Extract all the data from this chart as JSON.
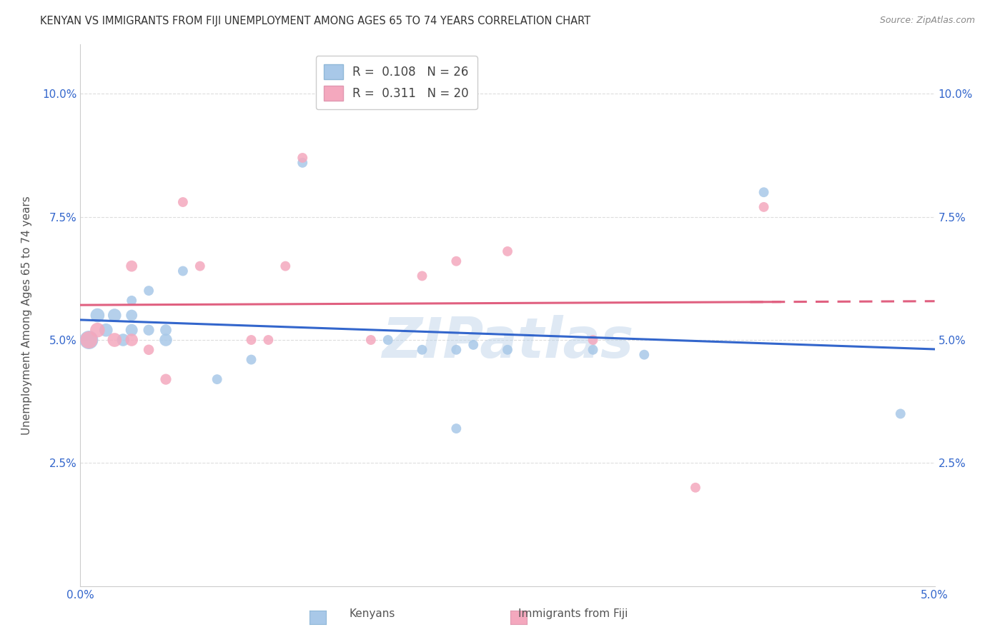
{
  "title": "KENYAN VS IMMIGRANTS FROM FIJI UNEMPLOYMENT AMONG AGES 65 TO 74 YEARS CORRELATION CHART",
  "source": "Source: ZipAtlas.com",
  "ylabel": "Unemployment Among Ages 65 to 74 years",
  "xlim": [
    0.0,
    0.05
  ],
  "ylim": [
    0.0,
    0.11
  ],
  "x_ticks": [
    0.0,
    0.01,
    0.02,
    0.03,
    0.04,
    0.05
  ],
  "x_tick_labels": [
    "0.0%",
    "",
    "",
    "",
    "",
    "5.0%"
  ],
  "y_ticks": [
    0.0,
    0.025,
    0.05,
    0.075,
    0.1
  ],
  "y_tick_labels": [
    "",
    "2.5%",
    "5.0%",
    "7.5%",
    "10.0%"
  ],
  "kenya_color": "#a8c8e8",
  "fiji_color": "#f4a8be",
  "kenya_line_color": "#3366cc",
  "fiji_line_color": "#e06080",
  "kenya_R": 0.108,
  "kenya_N": 26,
  "fiji_R": 0.311,
  "fiji_N": 20,
  "kenya_x": [
    0.0005,
    0.001,
    0.0015,
    0.002,
    0.0025,
    0.003,
    0.003,
    0.003,
    0.004,
    0.004,
    0.005,
    0.005,
    0.006,
    0.008,
    0.01,
    0.013,
    0.018,
    0.02,
    0.022,
    0.022,
    0.023,
    0.025,
    0.03,
    0.033,
    0.04,
    0.048
  ],
  "kenya_y": [
    0.05,
    0.055,
    0.052,
    0.055,
    0.05,
    0.052,
    0.055,
    0.058,
    0.052,
    0.06,
    0.05,
    0.052,
    0.064,
    0.042,
    0.046,
    0.086,
    0.05,
    0.048,
    0.032,
    0.048,
    0.049,
    0.048,
    0.048,
    0.047,
    0.08,
    0.035
  ],
  "kenya_size": [
    350,
    200,
    180,
    180,
    160,
    150,
    130,
    100,
    120,
    100,
    160,
    130,
    100,
    100,
    100,
    100,
    100,
    100,
    100,
    100,
    100,
    100,
    100,
    100,
    100,
    100
  ],
  "fiji_x": [
    0.0005,
    0.001,
    0.002,
    0.003,
    0.003,
    0.004,
    0.005,
    0.006,
    0.007,
    0.01,
    0.011,
    0.012,
    0.013,
    0.017,
    0.02,
    0.022,
    0.025,
    0.03,
    0.036,
    0.04
  ],
  "fiji_y": [
    0.05,
    0.052,
    0.05,
    0.05,
    0.065,
    0.048,
    0.042,
    0.078,
    0.065,
    0.05,
    0.05,
    0.065,
    0.087,
    0.05,
    0.063,
    0.066,
    0.068,
    0.05,
    0.02,
    0.077
  ],
  "fiji_size": [
    300,
    220,
    200,
    160,
    130,
    110,
    120,
    100,
    100,
    100,
    100,
    100,
    100,
    100,
    100,
    100,
    100,
    100,
    100,
    100
  ],
  "watermark": "ZIPatlas",
  "background_color": "#ffffff",
  "grid_color": "#dddddd"
}
